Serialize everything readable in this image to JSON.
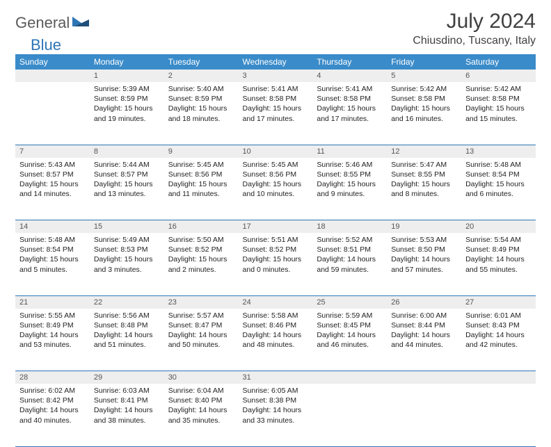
{
  "logo": {
    "part1": "General",
    "part2": "Blue"
  },
  "title": "July 2024",
  "location": "Chiusdino, Tuscany, Italy",
  "colors": {
    "header_bg": "#3a8bc9",
    "header_text": "#ffffff",
    "daynum_bg": "#eeeeee",
    "rule": "#2e75b6",
    "logo_gray": "#5a5a5a",
    "logo_blue": "#2e75b6"
  },
  "day_headers": [
    "Sunday",
    "Monday",
    "Tuesday",
    "Wednesday",
    "Thursday",
    "Friday",
    "Saturday"
  ],
  "weeks": [
    {
      "nums": [
        "",
        "1",
        "2",
        "3",
        "4",
        "5",
        "6"
      ],
      "cells": [
        null,
        {
          "sunrise": "5:39 AM",
          "sunset": "8:59 PM",
          "daylight": "15 hours and 19 minutes."
        },
        {
          "sunrise": "5:40 AM",
          "sunset": "8:59 PM",
          "daylight": "15 hours and 18 minutes."
        },
        {
          "sunrise": "5:41 AM",
          "sunset": "8:58 PM",
          "daylight": "15 hours and 17 minutes."
        },
        {
          "sunrise": "5:41 AM",
          "sunset": "8:58 PM",
          "daylight": "15 hours and 17 minutes."
        },
        {
          "sunrise": "5:42 AM",
          "sunset": "8:58 PM",
          "daylight": "15 hours and 16 minutes."
        },
        {
          "sunrise": "5:42 AM",
          "sunset": "8:58 PM",
          "daylight": "15 hours and 15 minutes."
        }
      ]
    },
    {
      "nums": [
        "7",
        "8",
        "9",
        "10",
        "11",
        "12",
        "13"
      ],
      "cells": [
        {
          "sunrise": "5:43 AM",
          "sunset": "8:57 PM",
          "daylight": "15 hours and 14 minutes."
        },
        {
          "sunrise": "5:44 AM",
          "sunset": "8:57 PM",
          "daylight": "15 hours and 13 minutes."
        },
        {
          "sunrise": "5:45 AM",
          "sunset": "8:56 PM",
          "daylight": "15 hours and 11 minutes."
        },
        {
          "sunrise": "5:45 AM",
          "sunset": "8:56 PM",
          "daylight": "15 hours and 10 minutes."
        },
        {
          "sunrise": "5:46 AM",
          "sunset": "8:55 PM",
          "daylight": "15 hours and 9 minutes."
        },
        {
          "sunrise": "5:47 AM",
          "sunset": "8:55 PM",
          "daylight": "15 hours and 8 minutes."
        },
        {
          "sunrise": "5:48 AM",
          "sunset": "8:54 PM",
          "daylight": "15 hours and 6 minutes."
        }
      ]
    },
    {
      "nums": [
        "14",
        "15",
        "16",
        "17",
        "18",
        "19",
        "20"
      ],
      "cells": [
        {
          "sunrise": "5:48 AM",
          "sunset": "8:54 PM",
          "daylight": "15 hours and 5 minutes."
        },
        {
          "sunrise": "5:49 AM",
          "sunset": "8:53 PM",
          "daylight": "15 hours and 3 minutes."
        },
        {
          "sunrise": "5:50 AM",
          "sunset": "8:52 PM",
          "daylight": "15 hours and 2 minutes."
        },
        {
          "sunrise": "5:51 AM",
          "sunset": "8:52 PM",
          "daylight": "15 hours and 0 minutes."
        },
        {
          "sunrise": "5:52 AM",
          "sunset": "8:51 PM",
          "daylight": "14 hours and 59 minutes."
        },
        {
          "sunrise": "5:53 AM",
          "sunset": "8:50 PM",
          "daylight": "14 hours and 57 minutes."
        },
        {
          "sunrise": "5:54 AM",
          "sunset": "8:49 PM",
          "daylight": "14 hours and 55 minutes."
        }
      ]
    },
    {
      "nums": [
        "21",
        "22",
        "23",
        "24",
        "25",
        "26",
        "27"
      ],
      "cells": [
        {
          "sunrise": "5:55 AM",
          "sunset": "8:49 PM",
          "daylight": "14 hours and 53 minutes."
        },
        {
          "sunrise": "5:56 AM",
          "sunset": "8:48 PM",
          "daylight": "14 hours and 51 minutes."
        },
        {
          "sunrise": "5:57 AM",
          "sunset": "8:47 PM",
          "daylight": "14 hours and 50 minutes."
        },
        {
          "sunrise": "5:58 AM",
          "sunset": "8:46 PM",
          "daylight": "14 hours and 48 minutes."
        },
        {
          "sunrise": "5:59 AM",
          "sunset": "8:45 PM",
          "daylight": "14 hours and 46 minutes."
        },
        {
          "sunrise": "6:00 AM",
          "sunset": "8:44 PM",
          "daylight": "14 hours and 44 minutes."
        },
        {
          "sunrise": "6:01 AM",
          "sunset": "8:43 PM",
          "daylight": "14 hours and 42 minutes."
        }
      ]
    },
    {
      "nums": [
        "28",
        "29",
        "30",
        "31",
        "",
        "",
        ""
      ],
      "cells": [
        {
          "sunrise": "6:02 AM",
          "sunset": "8:42 PM",
          "daylight": "14 hours and 40 minutes."
        },
        {
          "sunrise": "6:03 AM",
          "sunset": "8:41 PM",
          "daylight": "14 hours and 38 minutes."
        },
        {
          "sunrise": "6:04 AM",
          "sunset": "8:40 PM",
          "daylight": "14 hours and 35 minutes."
        },
        {
          "sunrise": "6:05 AM",
          "sunset": "8:38 PM",
          "daylight": "14 hours and 33 minutes."
        },
        null,
        null,
        null
      ]
    }
  ],
  "labels": {
    "sunrise": "Sunrise:",
    "sunset": "Sunset:",
    "daylight": "Daylight:"
  }
}
